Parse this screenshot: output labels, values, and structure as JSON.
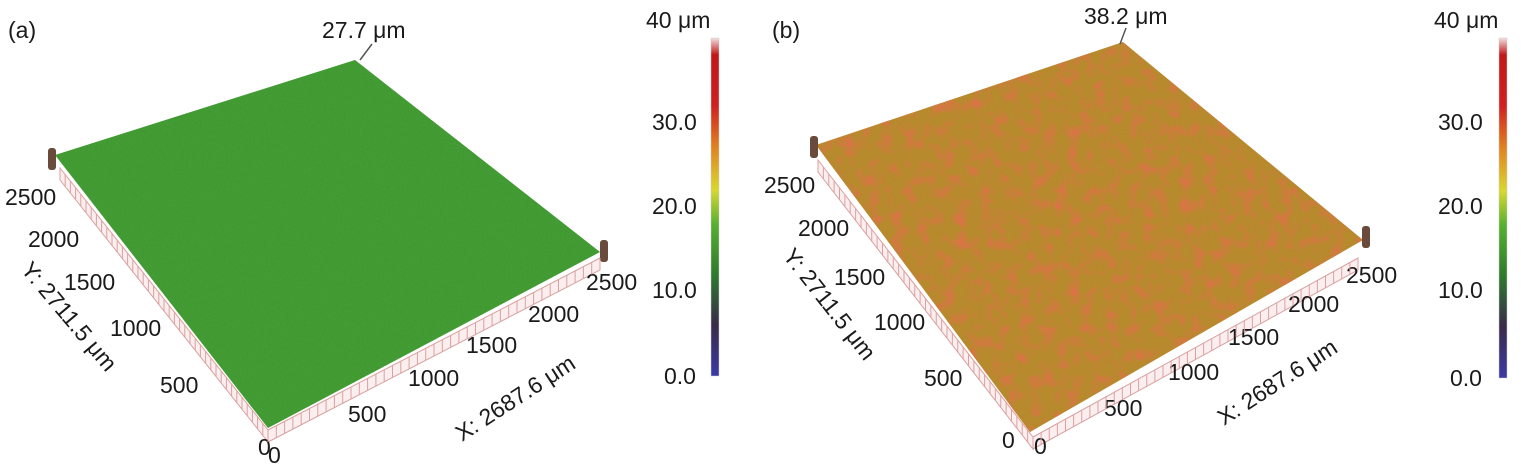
{
  "panels": [
    {
      "id": "a",
      "letter": "(a)",
      "peak_label": "27.7 μm",
      "y_axis_title": "Y: 2711.5 μm",
      "x_axis_title": "X: 2687.6 μm",
      "y_ticks": [
        "0",
        "500",
        "1000",
        "1500",
        "2000",
        "2500"
      ],
      "x_ticks": [
        "0",
        "500",
        "1000",
        "1500",
        "2000",
        "2500"
      ],
      "color_scale": {
        "top_label": "40 μm",
        "ticks": [
          "30.0",
          "20.0",
          "10.0",
          "0.0"
        ]
      },
      "surface_color": "#3f9a2f"
    },
    {
      "id": "b",
      "letter": "(b)",
      "peak_label": "38.2 μm",
      "y_axis_title": "Y: 2711.5 μm",
      "x_axis_title": "X: 2687.6 μm",
      "y_ticks": [
        "0",
        "500",
        "1000",
        "1500",
        "2000",
        "2500"
      ],
      "x_ticks": [
        "0",
        "500",
        "1000",
        "1500",
        "2000",
        "2500"
      ],
      "color_scale": {
        "top_label": "40 μm",
        "ticks": [
          "30.0",
          "20.0",
          "10.0",
          "0.0"
        ]
      },
      "surface_color": "#b8882a"
    }
  ],
  "colorbar_stops": [
    "#3a3aa6",
    "#3a2a4a",
    "#2e7a2e",
    "#58b030",
    "#d8d830",
    "#e08020",
    "#d02020",
    "#c01818",
    "#ffffff"
  ]
}
